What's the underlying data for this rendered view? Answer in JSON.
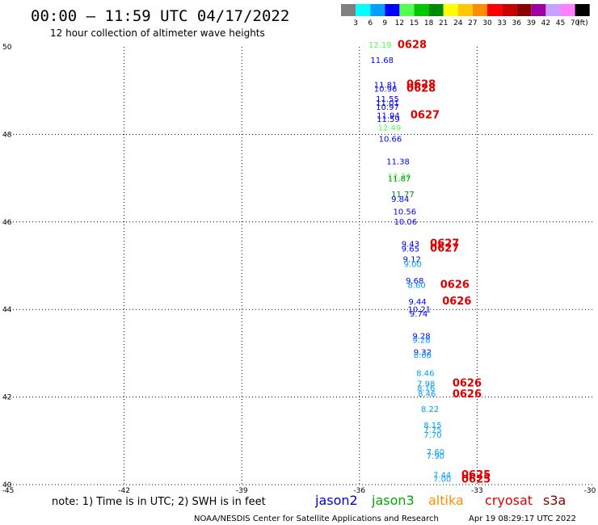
{
  "chart_data": {
    "type": "scatter",
    "title": "00:00 – 11:59 UTC 04/17/2022",
    "subtitle": "12 hour collection of altimeter wave heights",
    "xlim": [
      -45,
      -30
    ],
    "ylim": [
      40,
      50
    ],
    "x_ticks": [
      {
        "value": -45,
        "label": "-45"
      },
      {
        "value": -42,
        "label": "-42"
      },
      {
        "value": -39,
        "label": "-39"
      },
      {
        "value": -36,
        "label": "-36"
      },
      {
        "value": -33,
        "label": "-33"
      },
      {
        "value": -30,
        "label": "-30"
      }
    ],
    "y_ticks": [
      {
        "value": 40,
        "label": "40"
      },
      {
        "value": 42,
        "label": "42"
      },
      {
        "value": 44,
        "label": "44"
      },
      {
        "value": 46,
        "label": "46"
      },
      {
        "value": 48,
        "label": "48"
      },
      {
        "value": 50,
        "label": "50"
      }
    ],
    "grid": true,
    "colorbar": {
      "unit": "(ft)",
      "entries": [
        {
          "color": "#808080",
          "label": "3"
        },
        {
          "color": "#00ffff",
          "label": "6"
        },
        {
          "color": "#00a0ff",
          "label": "9"
        },
        {
          "color": "#0000ff",
          "label": "12"
        },
        {
          "color": "#50ff50",
          "label": "15"
        },
        {
          "color": "#00c800",
          "label": "18"
        },
        {
          "color": "#008c00",
          "label": "21"
        },
        {
          "color": "#ffff00",
          "label": "24"
        },
        {
          "color": "#ffc800",
          "label": "27"
        },
        {
          "color": "#ff8c00",
          "label": "30"
        },
        {
          "color": "#ff0000",
          "label": "33"
        },
        {
          "color": "#c80000",
          "label": "36"
        },
        {
          "color": "#8c0000",
          "label": "39"
        },
        {
          "color": "#a000a0",
          "label": "42"
        },
        {
          "color": "#c8a0ff",
          "label": "45"
        },
        {
          "color": "#ff80ff",
          "label": "70"
        },
        {
          "color": "#000000",
          "label": ""
        }
      ]
    },
    "points": [
      {
        "lon": -35.77,
        "lat": 49.98,
        "value": "12.19",
        "color": "#50ff50"
      },
      {
        "lon": -35.72,
        "lat": 49.63,
        "value": "11.68",
        "color": "#0000ff"
      },
      {
        "lon": -35.63,
        "lat": 49.07,
        "value": "11.81",
        "color": "#0000ff"
      },
      {
        "lon": -35.63,
        "lat": 48.98,
        "value": "10.96",
        "color": "#0000ff"
      },
      {
        "lon": -35.58,
        "lat": 48.75,
        "value": "11.55",
        "color": "#0000ff"
      },
      {
        "lon": -35.58,
        "lat": 48.65,
        "value": "11.01",
        "color": "#0000ff"
      },
      {
        "lon": -35.58,
        "lat": 48.56,
        "value": "10.97",
        "color": "#0000ff"
      },
      {
        "lon": -35.56,
        "lat": 48.37,
        "value": "11.94",
        "color": "#0000ff"
      },
      {
        "lon": -35.56,
        "lat": 48.28,
        "value": "11.59",
        "color": "#0000ff"
      },
      {
        "lon": -35.53,
        "lat": 48.09,
        "value": "12.49",
        "color": "#50ff50"
      },
      {
        "lon": -35.51,
        "lat": 47.83,
        "value": "10.66",
        "color": "#0000ff"
      },
      {
        "lon": -35.31,
        "lat": 47.32,
        "value": "11.38",
        "color": "#0000ff"
      },
      {
        "lon": -35.28,
        "lat": 46.98,
        "value": "12.24",
        "color": "#50ff50"
      },
      {
        "lon": -35.28,
        "lat": 46.93,
        "value": "11.87",
        "color": "#008c00"
      },
      {
        "lon": -35.19,
        "lat": 46.57,
        "value": "11.77",
        "color": "#008c00"
      },
      {
        "lon": -35.19,
        "lat": 46.46,
        "value": "9.84",
        "color": "#0000ff"
      },
      {
        "lon": -35.14,
        "lat": 46.17,
        "value": "10.56",
        "color": "#0000ff"
      },
      {
        "lon": -35.12,
        "lat": 45.94,
        "value": "10.06",
        "color": "#0000ff"
      },
      {
        "lon": -34.93,
        "lat": 45.43,
        "value": "9.43",
        "color": "#0000ff"
      },
      {
        "lon": -34.93,
        "lat": 45.32,
        "value": "9.65",
        "color": "#0000ff"
      },
      {
        "lon": -34.89,
        "lat": 45.08,
        "value": "9.12",
        "color": "#0000ff"
      },
      {
        "lon": -34.87,
        "lat": 44.97,
        "value": "9.00",
        "color": "#00a0ff"
      },
      {
        "lon": -34.82,
        "lat": 44.59,
        "value": "9.68",
        "color": "#0000ff"
      },
      {
        "lon": -34.77,
        "lat": 44.49,
        "value": "8.60",
        "color": "#00a0ff"
      },
      {
        "lon": -34.75,
        "lat": 44.11,
        "value": "9.44",
        "color": "#0000ff"
      },
      {
        "lon": -34.77,
        "lat": 43.94,
        "value": "10.21",
        "color": "#0000ff"
      },
      {
        "lon": -34.72,
        "lat": 43.84,
        "value": "9.74",
        "color": "#0000ff"
      },
      {
        "lon": -34.65,
        "lat": 43.33,
        "value": "9.28",
        "color": "#0000ff"
      },
      {
        "lon": -34.65,
        "lat": 43.24,
        "value": "9.28",
        "color": "#00a0ff"
      },
      {
        "lon": -34.62,
        "lat": 42.96,
        "value": "9.32",
        "color": "#0000ff"
      },
      {
        "lon": -34.62,
        "lat": 42.9,
        "value": "8.68",
        "color": "#00a0ff"
      },
      {
        "lon": -34.55,
        "lat": 42.48,
        "value": "8.46",
        "color": "#00a0ff"
      },
      {
        "lon": -34.53,
        "lat": 42.24,
        "value": "7.98",
        "color": "#00a0ff"
      },
      {
        "lon": -34.53,
        "lat": 42.14,
        "value": "8.16",
        "color": "#00a0ff"
      },
      {
        "lon": -34.51,
        "lat": 42.01,
        "value": "8.46",
        "color": "#00a0ff"
      },
      {
        "lon": -34.43,
        "lat": 41.66,
        "value": "8.22",
        "color": "#00a0ff"
      },
      {
        "lon": -34.36,
        "lat": 41.29,
        "value": "8.15",
        "color": "#00a0ff"
      },
      {
        "lon": -34.36,
        "lat": 41.19,
        "value": "7.75",
        "color": "#00a0ff"
      },
      {
        "lon": -34.36,
        "lat": 41.07,
        "value": "7.70",
        "color": "#00a0ff"
      },
      {
        "lon": -34.29,
        "lat": 40.68,
        "value": "7.60",
        "color": "#00a0ff"
      },
      {
        "lon": -34.29,
        "lat": 40.59,
        "value": "7.90",
        "color": "#00a0ff"
      },
      {
        "lon": -34.12,
        "lat": 40.16,
        "value": "7.44",
        "color": "#00a0ff"
      },
      {
        "lon": -34.12,
        "lat": 40.06,
        "value": "7.00",
        "color": "#00a0ff"
      }
    ],
    "cycle_labels": [
      {
        "lon": -35.03,
        "lat": 49.97,
        "text": "0628"
      },
      {
        "lon": -34.8,
        "lat": 49.07,
        "text": "0628"
      },
      {
        "lon": -34.8,
        "lat": 48.98,
        "text": "0628"
      },
      {
        "lon": -34.7,
        "lat": 48.37,
        "text": "0627"
      },
      {
        "lon": -34.2,
        "lat": 45.43,
        "text": "0627"
      },
      {
        "lon": -34.2,
        "lat": 45.32,
        "text": "0627"
      },
      {
        "lon": -33.94,
        "lat": 44.49,
        "text": "0626"
      },
      {
        "lon": -33.89,
        "lat": 44.11,
        "text": "0626"
      },
      {
        "lon": -33.63,
        "lat": 42.24,
        "text": "0626"
      },
      {
        "lon": -33.63,
        "lat": 41.99,
        "text": "0626"
      },
      {
        "lon": -33.4,
        "lat": 40.15,
        "text": "0625"
      },
      {
        "lon": -33.4,
        "lat": 40.05,
        "text": "0625"
      }
    ]
  },
  "footer": {
    "note": "note: 1) Time is in UTC; 2) SWH is in feet",
    "satellites": [
      {
        "name": "jason2",
        "color": "#0000dd"
      },
      {
        "name": "jason3",
        "color": "#00aa00"
      },
      {
        "name": "altika",
        "color": "#ff8c00"
      },
      {
        "name": "cryosat",
        "color": "#e00000"
      },
      {
        "name": "s3a",
        "color": "#8b0000"
      }
    ],
    "credit": "NOAA/NESDIS Center for Satellite Applications and Research",
    "timestamp": "Apr 19 08:29:17 UTC 2022"
  }
}
